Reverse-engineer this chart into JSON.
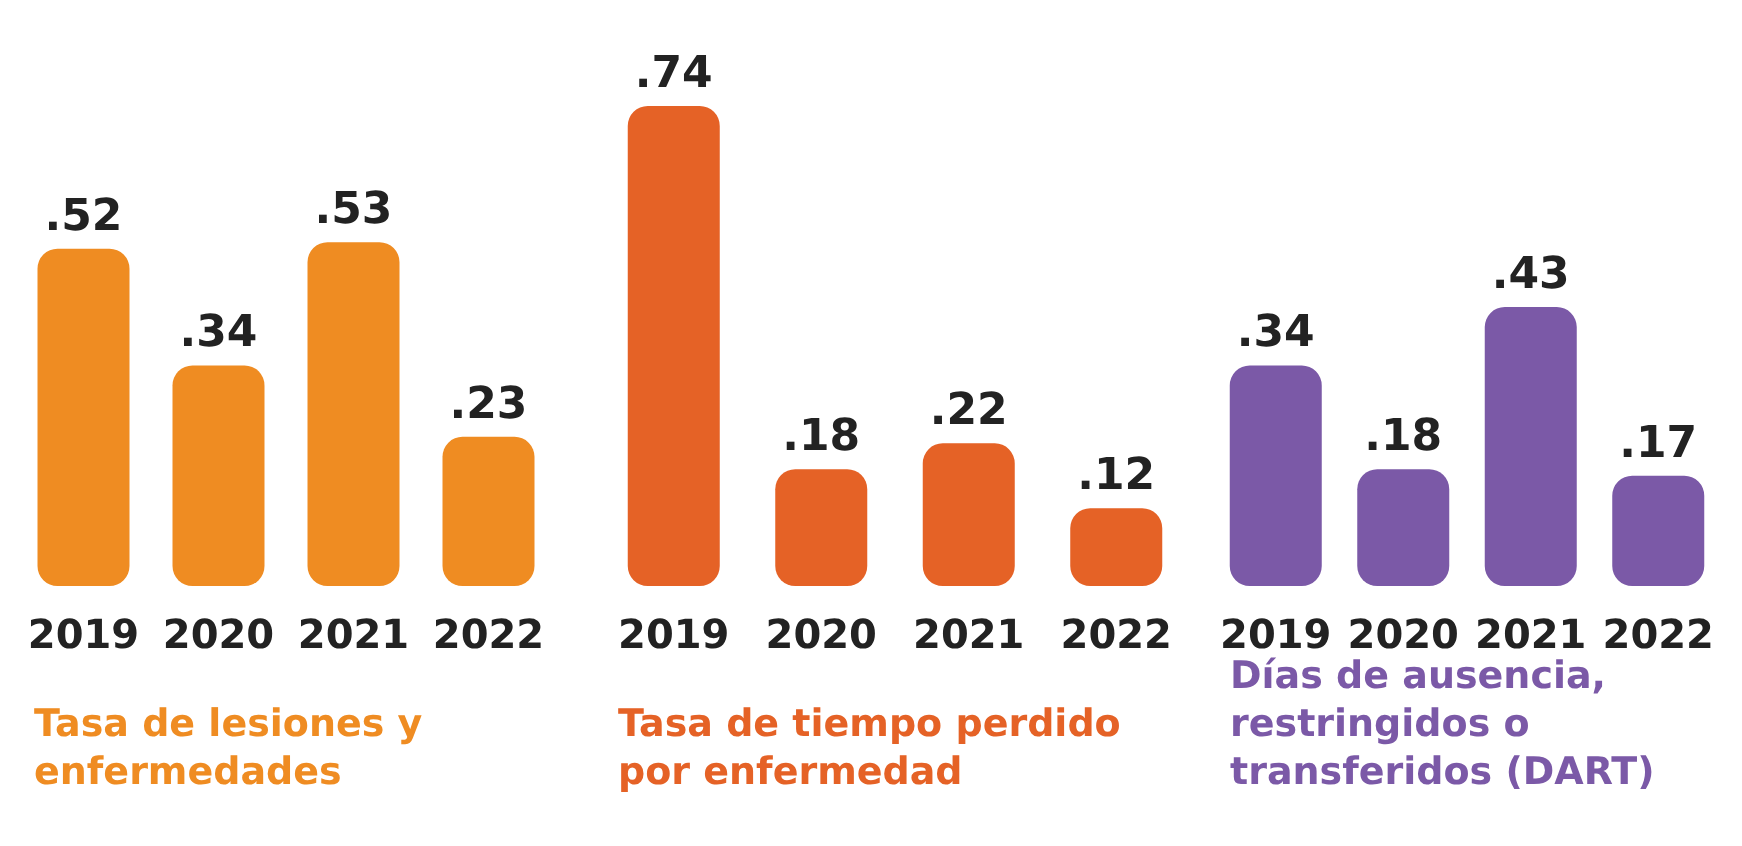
{
  "chart_data": [
    {
      "type": "bar",
      "xlabel": "Tasa de lesiones y enfermedades",
      "categories": [
        "2019",
        "2020",
        "2021",
        "2022"
      ],
      "values": [
        0.52,
        0.34,
        0.53,
        0.23
      ],
      "value_labels": [
        ".52",
        ".34",
        ".53",
        ".23"
      ],
      "color": "#ef8c22"
    },
    {
      "type": "bar",
      "xlabel": "Tasa de tiempo perdido por enfermedad",
      "categories": [
        "2019",
        "2020",
        "2021",
        "2022"
      ],
      "values": [
        0.74,
        0.18,
        0.22,
        0.12
      ],
      "value_labels": [
        ".74",
        ".18",
        ".22",
        ".12"
      ],
      "color": "#e56226"
    },
    {
      "type": "bar",
      "xlabel": "Días de ausencia, restringidos o transferidos (DART)",
      "categories": [
        "2019",
        "2020",
        "2021",
        "2022"
      ],
      "values": [
        0.34,
        0.18,
        0.43,
        0.17
      ],
      "value_labels": [
        ".34",
        ".18",
        ".43",
        ".17"
      ],
      "color": "#7b59a7"
    }
  ]
}
